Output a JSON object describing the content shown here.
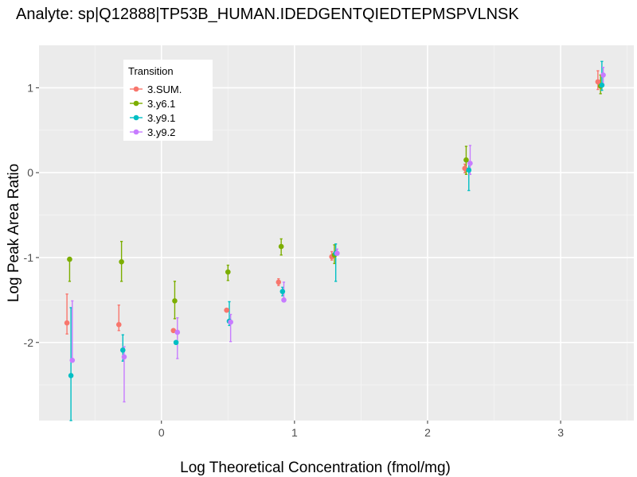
{
  "chart_data": {
    "type": "scatter",
    "title": "Analyte: sp|Q12888|TP53B_HUMAN.IDEDGENTQIEDTEPMSPVLNSK",
    "xlabel": "Log Theoretical Concentration (fmol/mg)",
    "ylabel": "Log Peak Area Ratio",
    "xlim": [
      -0.92,
      3.55
    ],
    "ylim": [
      -2.92,
      1.5
    ],
    "x_ticks": [
      0,
      1,
      2,
      3
    ],
    "x_tick_labels": [
      "0",
      "1",
      "2",
      "3"
    ],
    "y_ticks": [
      1,
      0,
      -1,
      -2
    ],
    "y_tick_labels": [
      "1",
      "0",
      "-1",
      "-2"
    ],
    "legend": {
      "title": "Transition",
      "position": "top-left"
    },
    "series": [
      {
        "name": "3.SUM.",
        "color": "#F8766D",
        "points": [
          {
            "x": -0.71,
            "y": -1.77,
            "lo": -1.9,
            "hi": -1.43
          },
          {
            "x": -0.32,
            "y": -1.79,
            "lo": -1.86,
            "hi": -1.56
          },
          {
            "x": 0.09,
            "y": -1.86,
            "lo": -1.87,
            "hi": -1.86
          },
          {
            "x": 0.49,
            "y": -1.62,
            "lo": -1.63,
            "hi": -1.61
          },
          {
            "x": 0.88,
            "y": -1.29,
            "lo": -1.33,
            "hi": -1.25
          },
          {
            "x": 1.28,
            "y": -0.99,
            "lo": -1.03,
            "hi": -0.93
          },
          {
            "x": 2.28,
            "y": 0.05,
            "lo": 0.0,
            "hi": 0.1
          },
          {
            "x": 3.28,
            "y": 1.07,
            "lo": 0.98,
            "hi": 1.2
          }
        ]
      },
      {
        "name": "3.y6.1",
        "color": "#7CAE00",
        "points": [
          {
            "x": -0.69,
            "y": -1.02,
            "lo": -1.28,
            "hi": -1.02
          },
          {
            "x": -0.3,
            "y": -1.05,
            "lo": -1.28,
            "hi": -0.81
          },
          {
            "x": 0.1,
            "y": -1.51,
            "lo": -1.72,
            "hi": -1.28
          },
          {
            "x": 0.5,
            "y": -1.17,
            "lo": -1.27,
            "hi": -1.09
          },
          {
            "x": 0.9,
            "y": -0.87,
            "lo": -0.97,
            "hi": -0.78
          },
          {
            "x": 1.3,
            "y": -0.97,
            "lo": -1.07,
            "hi": -0.85
          },
          {
            "x": 2.29,
            "y": 0.15,
            "lo": -0.02,
            "hi": 0.31
          },
          {
            "x": 3.3,
            "y": 1.02,
            "lo": 0.93,
            "hi": 1.15
          }
        ]
      },
      {
        "name": "3.y9.1",
        "color": "#00BFC4",
        "points": [
          {
            "x": -0.68,
            "y": -2.39,
            "lo": -2.92,
            "hi": -1.59
          },
          {
            "x": -0.29,
            "y": -2.09,
            "lo": -2.22,
            "hi": -1.91
          },
          {
            "x": 0.11,
            "y": -2.0,
            "lo": -2.02,
            "hi": -1.98
          },
          {
            "x": 0.51,
            "y": -1.75,
            "lo": -1.8,
            "hi": -1.52
          },
          {
            "x": 0.91,
            "y": -1.4,
            "lo": -1.45,
            "hi": -1.35
          },
          {
            "x": 1.31,
            "y": -0.95,
            "lo": -1.28,
            "hi": -0.84
          },
          {
            "x": 2.31,
            "y": 0.03,
            "lo": -0.21,
            "hi": 0.13
          },
          {
            "x": 3.31,
            "y": 1.03,
            "lo": 0.97,
            "hi": 1.31
          }
        ]
      },
      {
        "name": "3.y9.2",
        "color": "#C77CFF",
        "points": [
          {
            "x": -0.67,
            "y": -2.21,
            "lo": -2.22,
            "hi": -1.51
          },
          {
            "x": -0.28,
            "y": -2.17,
            "lo": -2.7,
            "hi": -2.05
          },
          {
            "x": 0.12,
            "y": -1.88,
            "lo": -2.19,
            "hi": -1.71
          },
          {
            "x": 0.52,
            "y": -1.76,
            "lo": -1.99,
            "hi": -1.67
          },
          {
            "x": 0.92,
            "y": -1.5,
            "lo": -1.51,
            "hi": -1.29
          },
          {
            "x": 1.32,
            "y": -0.95,
            "lo": -0.97,
            "hi": -0.9
          },
          {
            "x": 2.32,
            "y": 0.11,
            "lo": -0.02,
            "hi": 0.32
          },
          {
            "x": 3.32,
            "y": 1.15,
            "lo": 1.04,
            "hi": 1.24
          }
        ]
      }
    ]
  }
}
